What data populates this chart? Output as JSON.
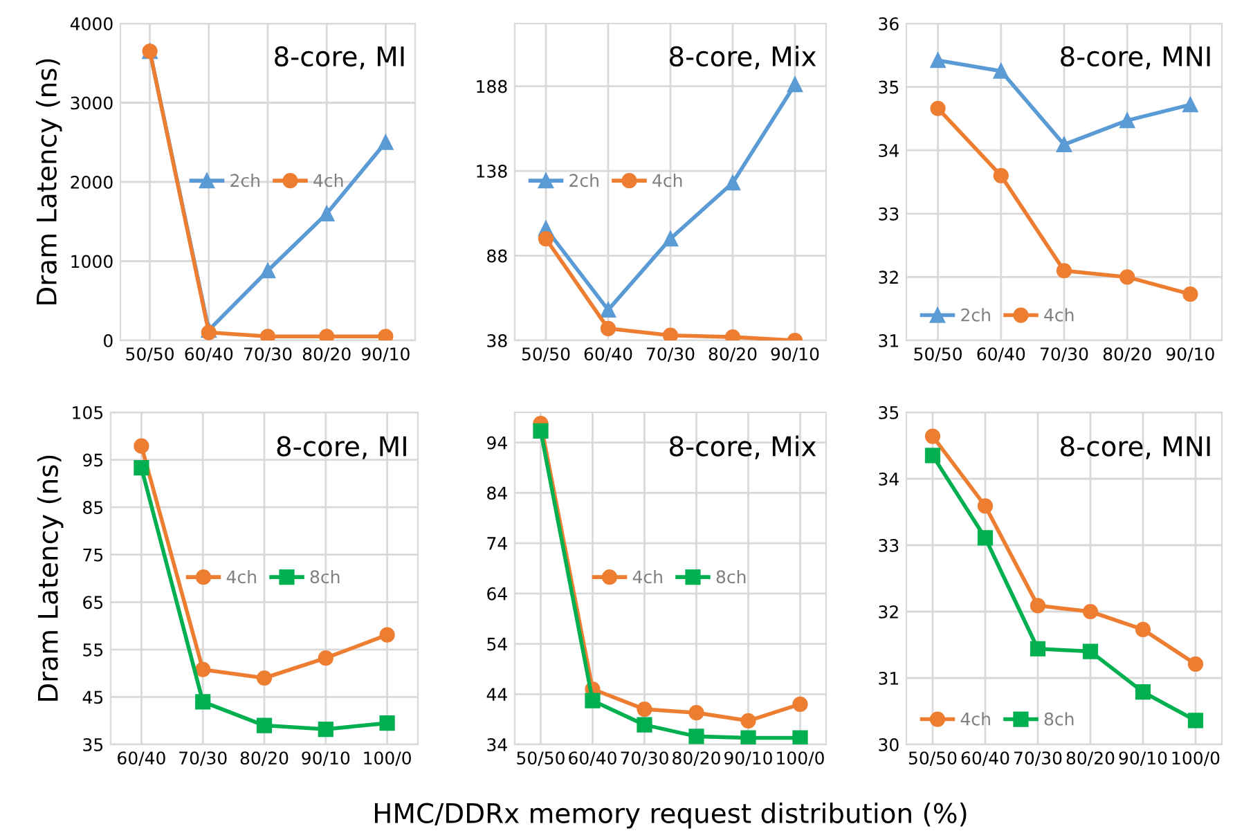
{
  "chart_data": [
    {
      "type": "line",
      "title": "8-core, MI",
      "ylabel": "Dram Latency (ns)",
      "categories": [
        "50/50",
        "60/40",
        "70/30",
        "80/20",
        "90/10"
      ],
      "ylim": [
        0,
        4000
      ],
      "yticks": [
        0,
        1000,
        2000,
        3000,
        4000
      ],
      "grid": true,
      "legend": "center",
      "series": [
        {
          "name": "2ch",
          "color": "#5b9bd5",
          "marker": "triangle",
          "values": [
            3650,
            130,
            880,
            1600,
            2500
          ]
        },
        {
          "name": "4ch",
          "color": "#ed7d31",
          "marker": "circle",
          "values": [
            3650,
            100,
            50,
            50,
            50
          ]
        }
      ]
    },
    {
      "type": "line",
      "title": "8-core, Mix",
      "categories": [
        "50/50",
        "60/40",
        "70/30",
        "80/20",
        "90/10"
      ],
      "ylim": [
        38,
        225
      ],
      "yticks": [
        38,
        88,
        138,
        188
      ],
      "grid": true,
      "legend": "center left",
      "series": [
        {
          "name": "2ch",
          "color": "#5b9bd5",
          "marker": "triangle",
          "values": [
            104,
            56,
            98,
            131,
            189
          ]
        },
        {
          "name": "4ch",
          "color": "#ed7d31",
          "marker": "circle",
          "values": [
            98,
            45,
            41,
            40,
            38
          ]
        }
      ]
    },
    {
      "type": "line",
      "title": "8-core, MNI",
      "categories": [
        "50/50",
        "60/40",
        "70/30",
        "80/20",
        "90/10"
      ],
      "ylim": [
        31,
        36
      ],
      "yticks": [
        31,
        32,
        33,
        34,
        35,
        36
      ],
      "grid": true,
      "legend": "lower left",
      "series": [
        {
          "name": "2ch",
          "color": "#5b9bd5",
          "marker": "triangle",
          "values": [
            35.42,
            35.25,
            34.09,
            34.47,
            34.72
          ]
        },
        {
          "name": "4ch",
          "color": "#ed7d31",
          "marker": "circle",
          "values": [
            34.66,
            33.6,
            32.1,
            32.0,
            31.73
          ]
        }
      ]
    },
    {
      "type": "line",
      "title": "8-core, MI",
      "ylabel": "Dram Latency (ns)",
      "categories": [
        "60/40",
        "70/30",
        "80/20",
        "90/10",
        "100/0"
      ],
      "ylim": [
        35,
        105
      ],
      "yticks": [
        35,
        45,
        55,
        65,
        75,
        85,
        95,
        105
      ],
      "grid": true,
      "legend": "center",
      "series": [
        {
          "name": "4ch",
          "color": "#ed7d31",
          "marker": "circle",
          "values": [
            97.9,
            50.8,
            49,
            53.2,
            58.1
          ]
        },
        {
          "name": "8ch",
          "color": "#00b050",
          "marker": "square",
          "values": [
            93.3,
            44,
            39,
            38.2,
            39.5
          ]
        }
      ]
    },
    {
      "type": "line",
      "title": "8-core, Mix",
      "xlabel": "HMC/DDRx memory request distribution (%)",
      "categories": [
        "50/50",
        "60/40",
        "70/30",
        "80/20",
        "90/10",
        "100/0"
      ],
      "ylim": [
        34,
        100
      ],
      "yticks": [
        34,
        44,
        54,
        64,
        74,
        84,
        94
      ],
      "grid": true,
      "legend": "center",
      "series": [
        {
          "name": "4ch",
          "color": "#ed7d31",
          "marker": "circle",
          "values": [
            97.8,
            45,
            41,
            40.3,
            38.7,
            42
          ]
        },
        {
          "name": "8ch",
          "color": "#00b050",
          "marker": "square",
          "values": [
            96.3,
            42.7,
            37.9,
            35.6,
            35.3,
            35.3
          ]
        }
      ]
    },
    {
      "type": "line",
      "title": "8-core, MNI",
      "categories": [
        "50/50",
        "60/40",
        "70/30",
        "80/20",
        "90/10",
        "100/0"
      ],
      "ylim": [
        30,
        35
      ],
      "yticks": [
        30,
        31,
        32,
        33,
        34,
        35
      ],
      "grid": true,
      "legend": "lower left",
      "series": [
        {
          "name": "4ch",
          "color": "#ed7d31",
          "marker": "circle",
          "values": [
            34.64,
            33.59,
            32.09,
            32.0,
            31.73,
            31.21
          ]
        },
        {
          "name": "8ch",
          "color": "#00b050",
          "marker": "square",
          "values": [
            34.35,
            33.11,
            31.44,
            31.4,
            30.79,
            30.36
          ]
        }
      ]
    }
  ]
}
